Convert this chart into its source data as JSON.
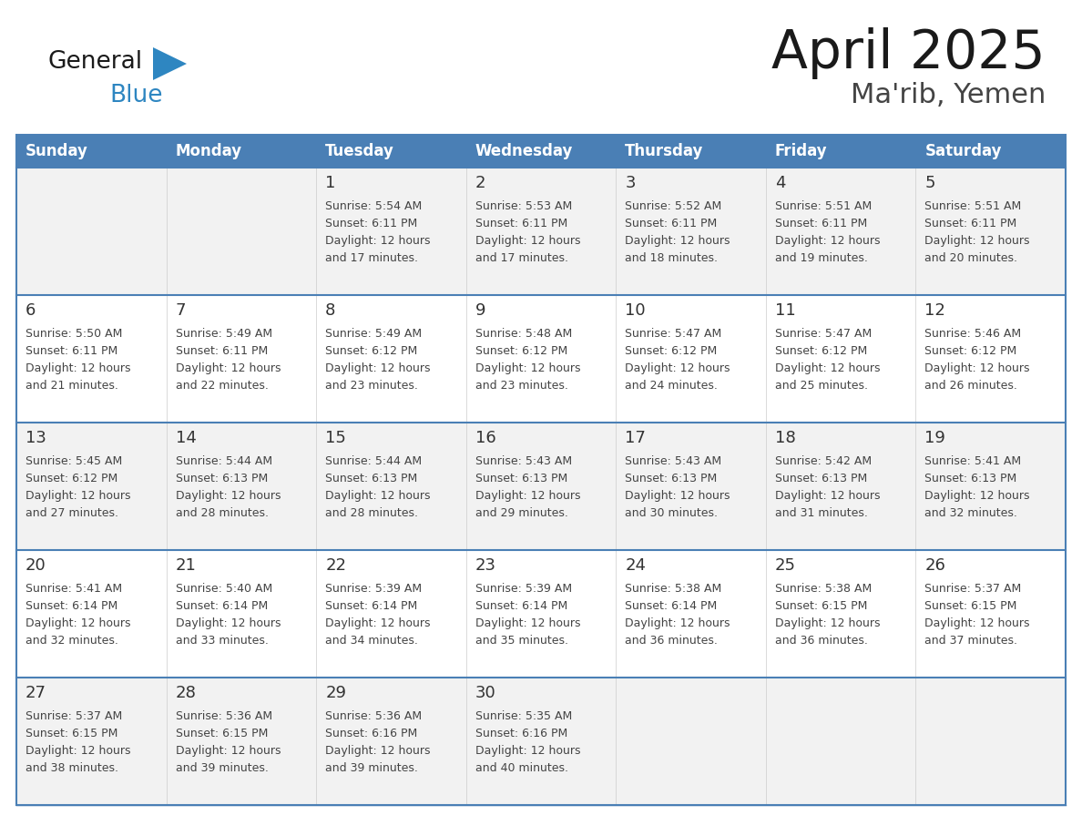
{
  "title": "April 2025",
  "subtitle": "Ma'rib, Yemen",
  "days_of_week": [
    "Sunday",
    "Monday",
    "Tuesday",
    "Wednesday",
    "Thursday",
    "Friday",
    "Saturday"
  ],
  "header_bg": "#4A7FB5",
  "header_text": "#FFFFFF",
  "row_bg_light": "#F2F2F2",
  "row_bg_white": "#FFFFFF",
  "row_border_color": "#4A7FB5",
  "outer_border_color": "#4A7FB5",
  "day_number_color": "#333333",
  "cell_text_color": "#444444",
  "title_color": "#1a1a1a",
  "subtitle_color": "#444444",
  "logo_general_color": "#1a1a1a",
  "logo_blue_color": "#2E86C1",
  "calendar_data": [
    [
      {
        "day": "",
        "sunrise": "",
        "sunset": "",
        "daylight": ""
      },
      {
        "day": "",
        "sunrise": "",
        "sunset": "",
        "daylight": ""
      },
      {
        "day": "1",
        "sunrise": "5:54 AM",
        "sunset": "6:11 PM",
        "daylight": "12 hours\nand 17 minutes."
      },
      {
        "day": "2",
        "sunrise": "5:53 AM",
        "sunset": "6:11 PM",
        "daylight": "12 hours\nand 17 minutes."
      },
      {
        "day": "3",
        "sunrise": "5:52 AM",
        "sunset": "6:11 PM",
        "daylight": "12 hours\nand 18 minutes."
      },
      {
        "day": "4",
        "sunrise": "5:51 AM",
        "sunset": "6:11 PM",
        "daylight": "12 hours\nand 19 minutes."
      },
      {
        "day": "5",
        "sunrise": "5:51 AM",
        "sunset": "6:11 PM",
        "daylight": "12 hours\nand 20 minutes."
      }
    ],
    [
      {
        "day": "6",
        "sunrise": "5:50 AM",
        "sunset": "6:11 PM",
        "daylight": "12 hours\nand 21 minutes."
      },
      {
        "day": "7",
        "sunrise": "5:49 AM",
        "sunset": "6:11 PM",
        "daylight": "12 hours\nand 22 minutes."
      },
      {
        "day": "8",
        "sunrise": "5:49 AM",
        "sunset": "6:12 PM",
        "daylight": "12 hours\nand 23 minutes."
      },
      {
        "day": "9",
        "sunrise": "5:48 AM",
        "sunset": "6:12 PM",
        "daylight": "12 hours\nand 23 minutes."
      },
      {
        "day": "10",
        "sunrise": "5:47 AM",
        "sunset": "6:12 PM",
        "daylight": "12 hours\nand 24 minutes."
      },
      {
        "day": "11",
        "sunrise": "5:47 AM",
        "sunset": "6:12 PM",
        "daylight": "12 hours\nand 25 minutes."
      },
      {
        "day": "12",
        "sunrise": "5:46 AM",
        "sunset": "6:12 PM",
        "daylight": "12 hours\nand 26 minutes."
      }
    ],
    [
      {
        "day": "13",
        "sunrise": "5:45 AM",
        "sunset": "6:12 PM",
        "daylight": "12 hours\nand 27 minutes."
      },
      {
        "day": "14",
        "sunrise": "5:44 AM",
        "sunset": "6:13 PM",
        "daylight": "12 hours\nand 28 minutes."
      },
      {
        "day": "15",
        "sunrise": "5:44 AM",
        "sunset": "6:13 PM",
        "daylight": "12 hours\nand 28 minutes."
      },
      {
        "day": "16",
        "sunrise": "5:43 AM",
        "sunset": "6:13 PM",
        "daylight": "12 hours\nand 29 minutes."
      },
      {
        "day": "17",
        "sunrise": "5:43 AM",
        "sunset": "6:13 PM",
        "daylight": "12 hours\nand 30 minutes."
      },
      {
        "day": "18",
        "sunrise": "5:42 AM",
        "sunset": "6:13 PM",
        "daylight": "12 hours\nand 31 minutes."
      },
      {
        "day": "19",
        "sunrise": "5:41 AM",
        "sunset": "6:13 PM",
        "daylight": "12 hours\nand 32 minutes."
      }
    ],
    [
      {
        "day": "20",
        "sunrise": "5:41 AM",
        "sunset": "6:14 PM",
        "daylight": "12 hours\nand 32 minutes."
      },
      {
        "day": "21",
        "sunrise": "5:40 AM",
        "sunset": "6:14 PM",
        "daylight": "12 hours\nand 33 minutes."
      },
      {
        "day": "22",
        "sunrise": "5:39 AM",
        "sunset": "6:14 PM",
        "daylight": "12 hours\nand 34 minutes."
      },
      {
        "day": "23",
        "sunrise": "5:39 AM",
        "sunset": "6:14 PM",
        "daylight": "12 hours\nand 35 minutes."
      },
      {
        "day": "24",
        "sunrise": "5:38 AM",
        "sunset": "6:14 PM",
        "daylight": "12 hours\nand 36 minutes."
      },
      {
        "day": "25",
        "sunrise": "5:38 AM",
        "sunset": "6:15 PM",
        "daylight": "12 hours\nand 36 minutes."
      },
      {
        "day": "26",
        "sunrise": "5:37 AM",
        "sunset": "6:15 PM",
        "daylight": "12 hours\nand 37 minutes."
      }
    ],
    [
      {
        "day": "27",
        "sunrise": "5:37 AM",
        "sunset": "6:15 PM",
        "daylight": "12 hours\nand 38 minutes."
      },
      {
        "day": "28",
        "sunrise": "5:36 AM",
        "sunset": "6:15 PM",
        "daylight": "12 hours\nand 39 minutes."
      },
      {
        "day": "29",
        "sunrise": "5:36 AM",
        "sunset": "6:16 PM",
        "daylight": "12 hours\nand 39 minutes."
      },
      {
        "day": "30",
        "sunrise": "5:35 AM",
        "sunset": "6:16 PM",
        "daylight": "12 hours\nand 40 minutes."
      },
      {
        "day": "",
        "sunrise": "",
        "sunset": "",
        "daylight": ""
      },
      {
        "day": "",
        "sunrise": "",
        "sunset": "",
        "daylight": ""
      },
      {
        "day": "",
        "sunrise": "",
        "sunset": "",
        "daylight": ""
      }
    ]
  ]
}
